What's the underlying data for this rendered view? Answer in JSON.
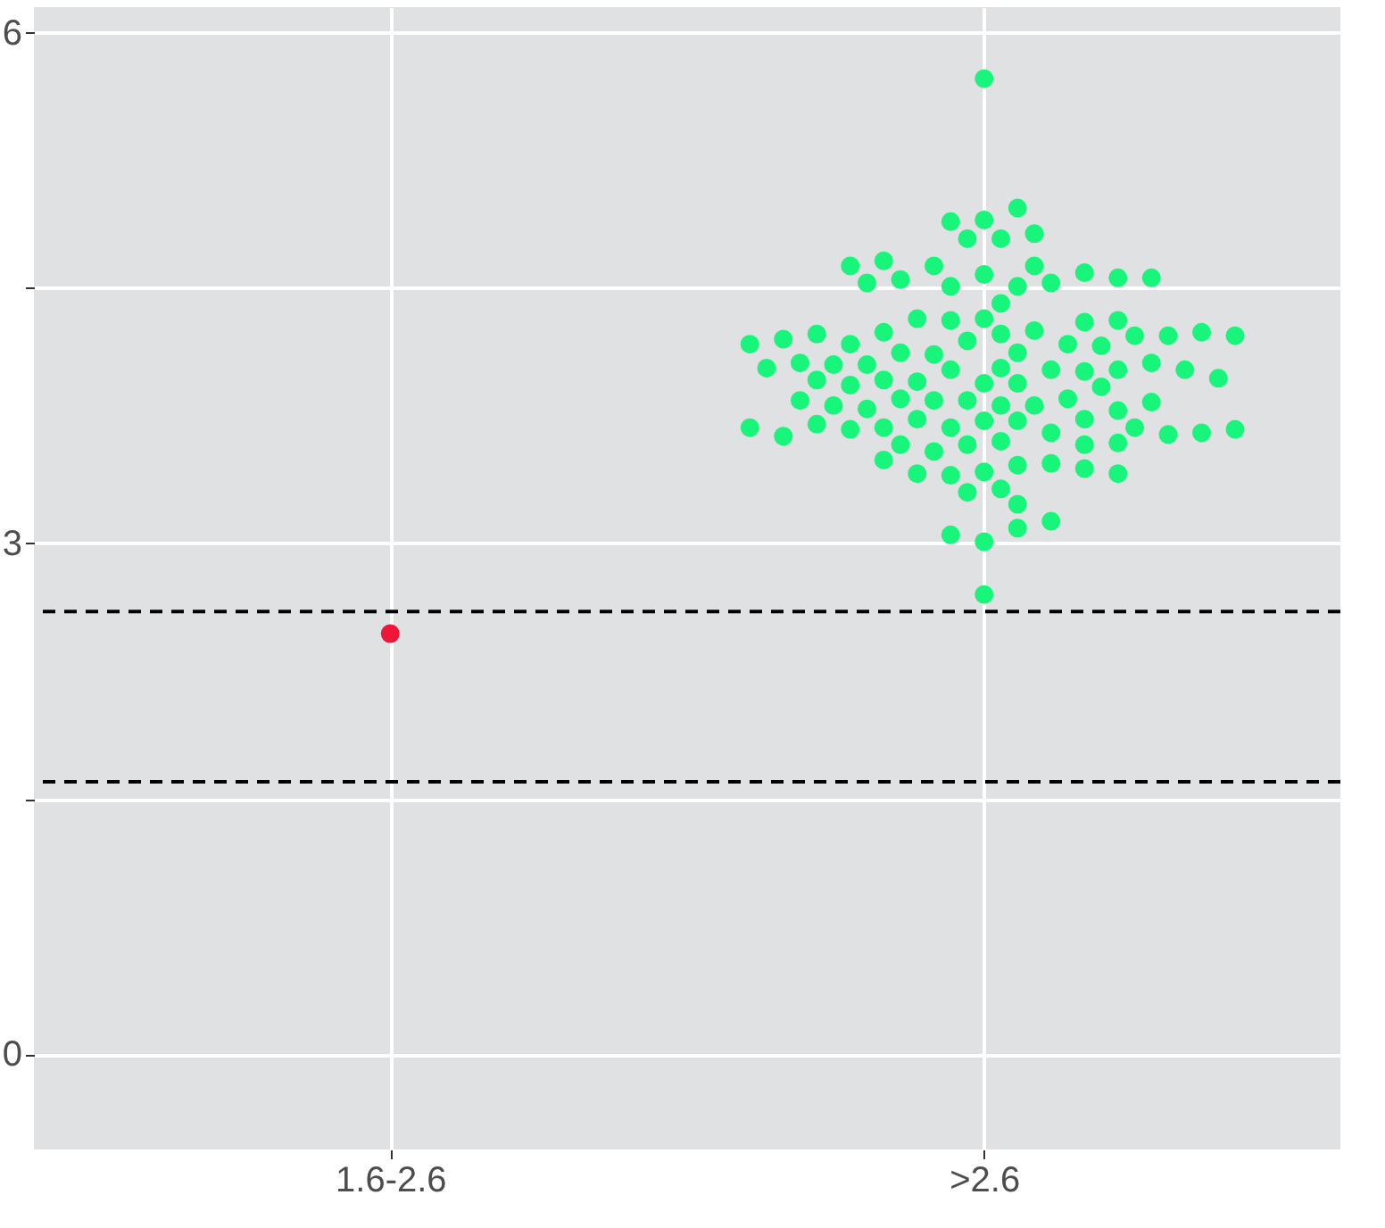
{
  "chart_data": {
    "type": "scatter",
    "categories": [
      "1.6-2.6",
      ">2.6"
    ],
    "ylim": [
      -0.56,
      6.15
    ],
    "yticks": [
      0,
      {
        "value": 1.5,
        "label": null
      },
      3,
      {
        "value": 4.5,
        "label": null
      },
      6
    ],
    "grid": true,
    "legend": false,
    "marker": "circle",
    "ref_lines": [
      {
        "axis": "y",
        "value": 2.6,
        "color": "#000000",
        "line_style": "dashed"
      },
      {
        "axis": "y",
        "value": 1.6,
        "color": "#000000",
        "line_style": "dashed"
      }
    ],
    "series": [
      {
        "color": "#f0163a",
        "x": [
          "1.6-2.6"
        ],
        "values": [
          2.47
        ]
      },
      {
        "color": "#17f57b",
        "x": [
          ">2.6",
          ">2.6",
          ">2.6",
          ">2.6",
          ">2.6",
          ">2.6",
          ">2.6",
          ">2.6",
          ">2.6",
          ">2.6",
          ">2.6",
          ">2.6",
          ">2.6",
          ">2.6",
          ">2.6",
          ">2.6",
          ">2.6",
          ">2.6",
          ">2.6",
          ">2.6",
          ">2.6",
          ">2.6",
          ">2.6",
          ">2.6",
          ">2.6",
          ">2.6",
          ">2.6",
          ">2.6",
          ">2.6",
          ">2.6",
          ">2.6",
          ">2.6",
          ">2.6",
          ">2.6",
          ">2.6",
          ">2.6",
          ">2.6",
          ">2.6",
          ">2.6",
          ">2.6",
          ">2.6",
          ">2.6",
          ">2.6",
          ">2.6",
          ">2.6",
          ">2.6",
          ">2.6",
          ">2.6",
          ">2.6",
          ">2.6",
          ">2.6",
          ">2.6",
          ">2.6",
          ">2.6",
          ">2.6",
          ">2.6",
          ">2.6",
          ">2.6",
          ">2.6",
          ">2.6",
          ">2.6",
          ">2.6",
          ">2.6",
          ">2.6",
          ">2.6",
          ">2.6",
          ">2.6",
          ">2.6",
          ">2.6",
          ">2.6",
          ">2.6",
          ">2.6",
          ">2.6",
          ">2.6",
          ">2.6",
          ">2.6",
          ">2.6",
          ">2.6",
          ">2.6",
          ">2.6",
          ">2.6",
          ">2.6",
          ">2.6",
          ">2.6",
          ">2.6",
          ">2.6",
          ">2.6",
          ">2.6",
          ">2.6",
          ">2.6",
          ">2.6",
          ">2.6",
          ">2.6",
          ">2.6",
          ">2.6",
          ">2.6",
          ">2.6",
          ">2.6",
          ">2.6",
          ">2.6",
          ">2.6",
          ">2.6",
          ">2.6",
          ">2.6",
          ">2.6",
          ">2.6",
          ">2.6",
          ">2.6",
          ">2.6",
          ">2.6"
        ],
        "values": [
          5.73,
          4.9,
          4.97,
          4.89,
          4.58,
          4.51,
          4.51,
          4.63,
          4.63,
          4.32,
          4.23,
          4.19,
          4.25,
          3.94,
          3.81,
          3.94,
          3.84,
          4.02,
          3.81,
          4.12,
          4.11,
          4.31,
          4.02,
          3.95,
          4.01,
          4.17,
          4.12,
          4.05,
          3.84,
          3.72,
          3.72,
          3.68,
          3.6,
          3.58,
          3.42,
          3.32,
          3.46,
          3.65,
          3.73,
          3.73,
          3.68,
          3.01,
          3.09,
          4.16,
          4.17,
          4.53,
          4.55,
          4.59,
          4.66,
          4.53,
          4.41,
          4.32,
          4.56,
          4.24,
          4.3,
          4.22,
          4.23,
          4.22,
          4.2,
          4.24,
          4.17,
          4.02,
          3.96,
          4.05,
          4.03,
          4.06,
          4.06,
          3.93,
          3.85,
          4.02,
          4.79,
          4.82,
          4.63,
          4.56,
          4.79,
          4.31,
          4.22,
          4.03,
          3.92,
          3.79,
          3.78,
          3.67,
          3.81,
          3.68,
          3.85,
          3.83,
          3.54,
          3.3,
          3.58,
          3.58,
          3.47,
          3.59,
          3.4,
          3.7,
          3.64,
          3.63,
          3.65,
          3.49,
          3.41,
          3.23,
          3.05,
          3.13,
          3.44,
          2.7,
          3.41,
          3.68,
          3.67,
          3.84,
          3.97,
          3.96
        ]
      }
    ]
  }
}
